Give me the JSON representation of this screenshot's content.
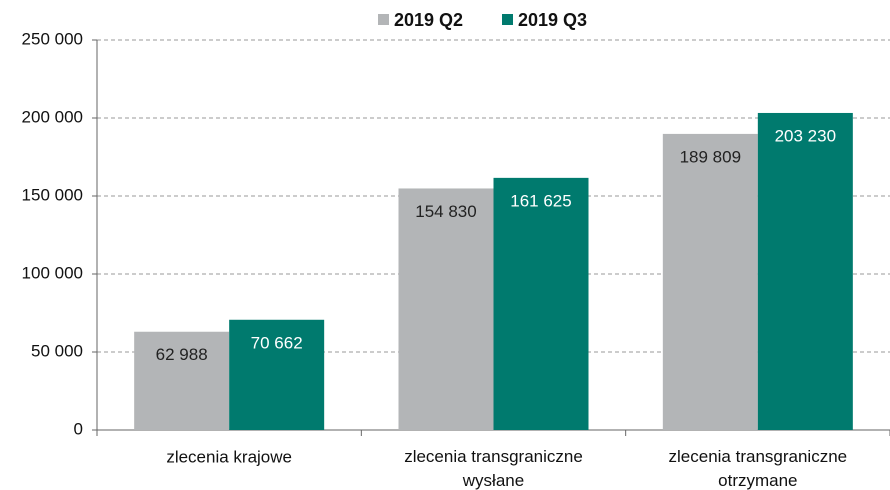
{
  "chart_data": {
    "type": "bar",
    "categories": [
      "zlecenia krajowe",
      "zlecenia transgraniczne wysłane",
      "zlecenia transgraniczne otrzymane"
    ],
    "series": [
      {
        "name": "2019 Q2",
        "color": "#b3b5b7",
        "values": [
          62988,
          154830,
          189809
        ],
        "value_labels": [
          "62 988",
          "154 830",
          "189 809"
        ]
      },
      {
        "name": "2019 Q3",
        "color": "#007a6e",
        "values": [
          70662,
          161625,
          203230
        ],
        "value_labels": [
          "70 662",
          "161 625",
          "203 230"
        ]
      }
    ],
    "ylim": [
      0,
      250000
    ],
    "yticks": [
      0,
      {
        "value": 50000,
        "label": "50 000"
      },
      {
        "value": 100000,
        "label": "100 000"
      },
      {
        "value": 150000,
        "label": "150 000"
      },
      {
        "value": 200000,
        "label": "200 000"
      },
      {
        "value": 250000,
        "label": "250 000"
      }
    ],
    "grid": true,
    "legend": "top"
  }
}
